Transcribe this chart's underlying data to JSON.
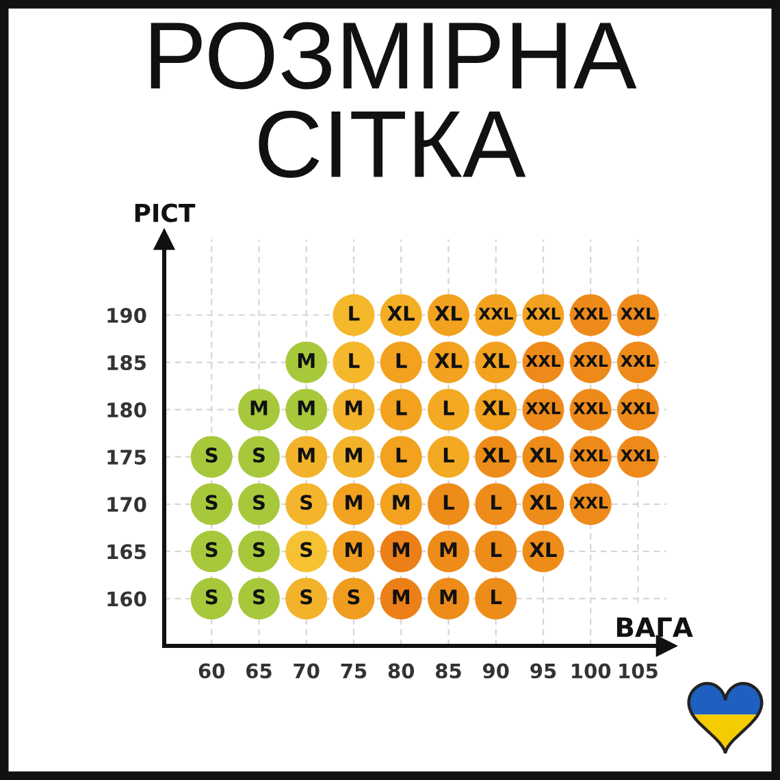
{
  "chart_data": {
    "type": "scatter",
    "title": "РОЗМІРНА\nСІТКА",
    "xlabel": "ВАГА",
    "ylabel": "РІСТ",
    "xlim": [
      55,
      108
    ],
    "ylim": [
      155,
      198
    ],
    "xticks": [
      60,
      65,
      70,
      75,
      80,
      85,
      90,
      95,
      100,
      105
    ],
    "yticks": [
      160,
      165,
      170,
      175,
      180,
      185,
      190
    ],
    "grid": true,
    "marker": "circle",
    "series": [
      {
        "name": "S",
        "x": [
          60,
          65,
          60,
          65,
          70,
          60,
          65,
          70,
          60,
          65,
          70,
          75
        ],
        "values": [
          175,
          175,
          170,
          170,
          170,
          165,
          165,
          165,
          160,
          160,
          160,
          160
        ],
        "colors": [
          "#a8c83c",
          "#a8c83c",
          "#a8c83c",
          "#a8c83c",
          "#f4b52c",
          "#a8c83c",
          "#a8c83c",
          "#f6c233",
          "#a8c83c",
          "#a8c83c",
          "#f2b22a",
          "#f09c1f"
        ]
      },
      {
        "name": "M",
        "x": [
          70,
          65,
          70,
          75,
          70,
          75,
          75,
          80,
          75,
          80,
          85,
          80,
          85
        ],
        "values": [
          185,
          180,
          180,
          180,
          175,
          175,
          170,
          170,
          165,
          165,
          165,
          160,
          160
        ],
        "colors": [
          "#a8c83c",
          "#a8c83c",
          "#a8c83c",
          "#f2b22a",
          "#f2b22a",
          "#f2b22a",
          "#f2a21f",
          "#f2a21f",
          "#f09c1f",
          "#ec7f17",
          "#ee8c1a",
          "#ec7f17",
          "#ee8c1a"
        ]
      },
      {
        "name": "L",
        "x": [
          75,
          75,
          80,
          80,
          85,
          80,
          85,
          85,
          90,
          90,
          90
        ],
        "values": [
          190,
          185,
          185,
          180,
          180,
          175,
          175,
          170,
          170,
          165,
          160
        ],
        "colors": [
          "#f5b82a",
          "#f5b82a",
          "#f2a21f",
          "#f2a21f",
          "#f3aa22",
          "#f2a21f",
          "#f3aa22",
          "#ee8c1a",
          "#ee8c1a",
          "#ee8c1a",
          "#ee8c1a"
        ]
      },
      {
        "name": "XL",
        "x": [
          80,
          85,
          85,
          90,
          90,
          90,
          95,
          95,
          95
        ],
        "values": [
          190,
          190,
          185,
          185,
          180,
          175,
          175,
          170,
          165
        ],
        "colors": [
          "#f3ae24",
          "#f2a21f",
          "#f2a21f",
          "#f2a21f",
          "#f2a21f",
          "#ee8c1a",
          "#ee8c1a",
          "#ee8c1a",
          "#ee8c1a"
        ]
      },
      {
        "name": "XXL",
        "x": [
          90,
          95,
          100,
          105,
          95,
          100,
          105,
          95,
          100,
          105,
          100,
          105,
          100
        ],
        "values": [
          190,
          190,
          190,
          190,
          185,
          185,
          185,
          180,
          180,
          180,
          175,
          175,
          170
        ],
        "colors": [
          "#f2a21f",
          "#f2a21f",
          "#ee8a1a",
          "#ee8a1a",
          "#ee8a1a",
          "#ee8a1a",
          "#ee8a1a",
          "#ee8a1a",
          "#ee8a1a",
          "#ee8a1a",
          "#ee8a1a",
          "#ee8a1a",
          "#ee8a1a"
        ]
      }
    ]
  }
}
